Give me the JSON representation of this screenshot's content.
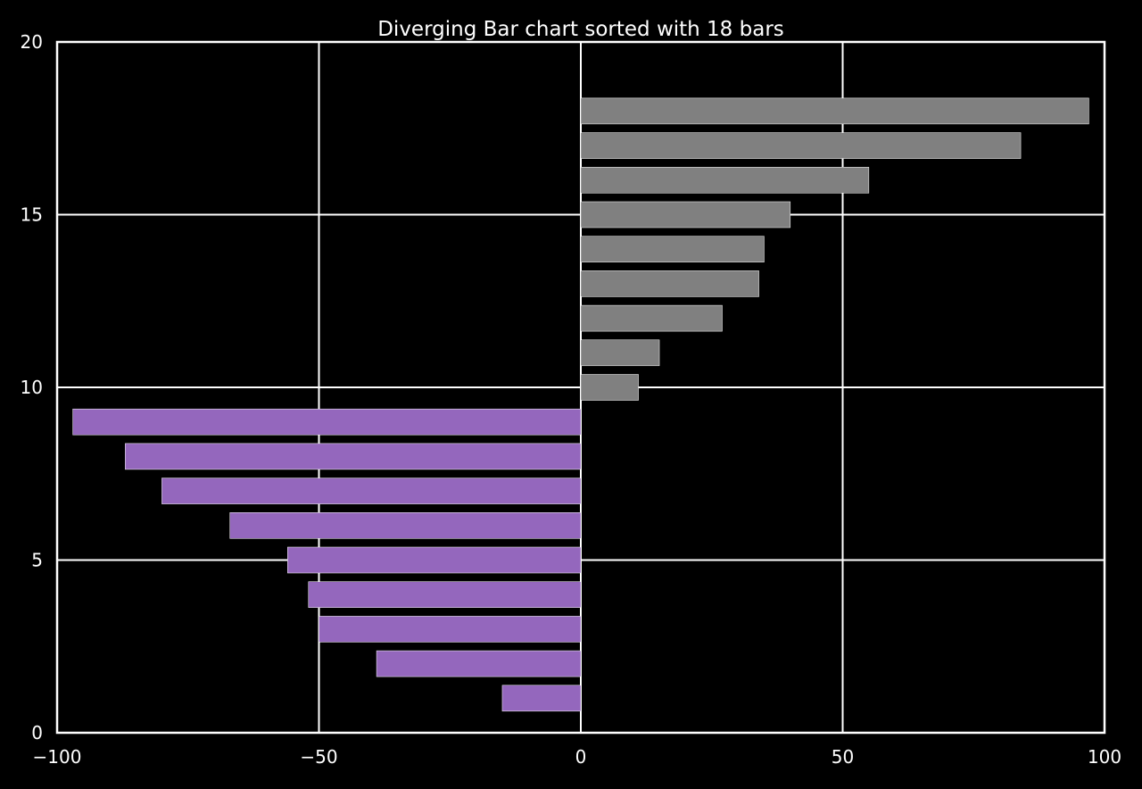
{
  "chart_data": {
    "type": "bar",
    "orientation": "horizontal",
    "title": "Diverging Bar chart sorted with 18 bars",
    "xlabel": "",
    "ylabel": "",
    "xlim": [
      -100,
      100
    ],
    "ylim": [
      0,
      20
    ],
    "x_ticks": [
      -100,
      -50,
      0,
      50,
      100
    ],
    "x_tick_labels": [
      "−100",
      "−50",
      "0",
      "50",
      "100"
    ],
    "y_ticks": [
      0,
      5,
      10,
      15,
      20
    ],
    "y_tick_labels": [
      "0",
      "5",
      "10",
      "15",
      "20"
    ],
    "grid": true,
    "background_color": "#000000",
    "text_color": "#ffffff",
    "negative_color": "#9467bd",
    "positive_color": "#808080",
    "bar_edge_color": "#ffffff",
    "bar_height": 0.75,
    "y": [
      1,
      2,
      3,
      4,
      5,
      6,
      7,
      8,
      9,
      10,
      11,
      12,
      13,
      14,
      15,
      16,
      17,
      18
    ],
    "values": [
      -15,
      -39,
      -50,
      -52,
      -56,
      -67,
      -80,
      -87,
      -97,
      11,
      15,
      27,
      34,
      35,
      40,
      55,
      84,
      97
    ]
  }
}
